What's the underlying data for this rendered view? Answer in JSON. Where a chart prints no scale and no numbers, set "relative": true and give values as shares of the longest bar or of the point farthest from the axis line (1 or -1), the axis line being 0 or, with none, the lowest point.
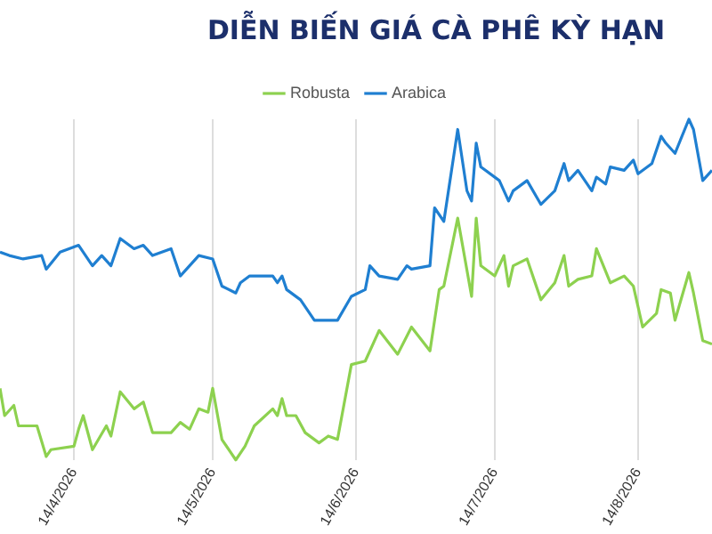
{
  "chart_data": {
    "type": "line",
    "title": "DIỄN BIẾN GIÁ CÀ PHÊ KỲ HẠN",
    "relative": true,
    "grid": "x",
    "legend": "top",
    "marker": "none",
    "line_style": "solid",
    "xlim": [
      "2026-03-29",
      "2026-08-30"
    ],
    "xticks": [
      {
        "value": "2026-04-14",
        "label": "14/4/2026"
      },
      {
        "value": "2026-05-14",
        "label": "14/5/2026"
      },
      {
        "value": "2026-06-14",
        "label": "14/6/2026"
      },
      {
        "value": "2026-07-14",
        "label": "14/7/2026"
      },
      {
        "value": "2026-08-14",
        "label": "14/8/2026"
      }
    ],
    "series": [
      {
        "name": "Robusta",
        "color": "#8dd14f",
        "x": [
          "2026-03-29",
          "2026-03-30",
          "2026-04-01",
          "2026-04-02",
          "2026-04-06",
          "2026-04-08",
          "2026-04-09",
          "2026-04-14",
          "2026-04-15",
          "2026-04-16",
          "2026-04-18",
          "2026-04-21",
          "2026-04-22",
          "2026-04-24",
          "2026-04-27",
          "2026-04-29",
          "2026-05-01",
          "2026-05-05",
          "2026-05-07",
          "2026-05-09",
          "2026-05-11",
          "2026-05-13",
          "2026-05-14",
          "2026-05-16",
          "2026-05-19",
          "2026-05-21",
          "2026-05-23",
          "2026-05-27",
          "2026-05-28",
          "2026-05-29",
          "2026-05-30",
          "2026-06-01",
          "2026-06-03",
          "2026-06-06",
          "2026-06-08",
          "2026-06-10",
          "2026-06-13",
          "2026-06-16",
          "2026-06-19",
          "2026-06-23",
          "2026-06-26",
          "2026-06-30",
          "2026-07-02",
          "2026-07-03",
          "2026-07-06",
          "2026-07-09",
          "2026-07-10",
          "2026-07-11",
          "2026-07-14",
          "2026-07-16",
          "2026-07-17",
          "2026-07-18",
          "2026-07-21",
          "2026-07-24",
          "2026-07-27",
          "2026-07-29",
          "2026-07-30",
          "2026-08-01",
          "2026-08-04",
          "2026-08-05",
          "2026-08-08",
          "2026-08-11",
          "2026-08-13",
          "2026-08-15",
          "2026-08-18",
          "2026-08-19",
          "2026-08-21",
          "2026-08-22",
          "2026-08-25",
          "2026-08-26",
          "2026-08-28",
          "2026-08-30"
        ],
        "values": [
          0.21,
          0.13,
          0.16,
          0.1,
          0.1,
          0.01,
          0.03,
          0.04,
          0.09,
          0.13,
          0.03,
          0.1,
          0.07,
          0.2,
          0.15,
          0.17,
          0.08,
          0.08,
          0.11,
          0.09,
          0.15,
          0.14,
          0.21,
          0.06,
          0,
          0.04,
          0.1,
          0.15,
          0.13,
          0.18,
          0.13,
          0.13,
          0.08,
          0.05,
          0.07,
          0.06,
          0.28,
          0.29,
          0.38,
          0.31,
          0.39,
          0.32,
          0.5,
          0.51,
          0.71,
          0.48,
          0.71,
          0.57,
          0.54,
          0.6,
          0.51,
          0.57,
          0.59,
          0.47,
          0.52,
          0.6,
          0.51,
          0.53,
          0.54,
          0.62,
          0.52,
          0.54,
          0.51,
          0.39,
          0.43,
          0.5,
          0.49,
          0.41,
          0.55,
          0.49,
          0.35,
          0.34
        ]
      },
      {
        "name": "Arabica",
        "color": "#1f7fd1",
        "x": [
          "2026-03-29",
          "2026-03-31",
          "2026-04-03",
          "2026-04-07",
          "2026-04-08",
          "2026-04-11",
          "2026-04-15",
          "2026-04-18",
          "2026-04-20",
          "2026-04-22",
          "2026-04-24",
          "2026-04-27",
          "2026-04-29",
          "2026-05-01",
          "2026-05-05",
          "2026-05-07",
          "2026-05-11",
          "2026-05-14",
          "2026-05-16",
          "2026-05-19",
          "2026-05-20",
          "2026-05-22",
          "2026-05-27",
          "2026-05-28",
          "2026-05-29",
          "2026-05-30",
          "2026-06-02",
          "2026-06-05",
          "2026-06-10",
          "2026-06-13",
          "2026-06-16",
          "2026-06-17",
          "2026-06-19",
          "2026-06-23",
          "2026-06-25",
          "2026-06-26",
          "2026-06-30",
          "2026-07-01",
          "2026-07-03",
          "2026-07-06",
          "2026-07-08",
          "2026-07-09",
          "2026-07-10",
          "2026-07-11",
          "2026-07-15",
          "2026-07-17",
          "2026-07-18",
          "2026-07-21",
          "2026-07-24",
          "2026-07-27",
          "2026-07-29",
          "2026-07-30",
          "2026-08-01",
          "2026-08-04",
          "2026-08-05",
          "2026-08-07",
          "2026-08-08",
          "2026-08-11",
          "2026-08-13",
          "2026-08-14",
          "2026-08-17",
          "2026-08-19",
          "2026-08-20",
          "2026-08-22",
          "2026-08-25",
          "2026-08-26",
          "2026-08-28",
          "2026-08-30"
        ],
        "values": [
          0.61,
          0.6,
          0.59,
          0.6,
          0.56,
          0.61,
          0.63,
          0.57,
          0.6,
          0.57,
          0.65,
          0.62,
          0.63,
          0.6,
          0.62,
          0.54,
          0.6,
          0.59,
          0.51,
          0.49,
          0.52,
          0.54,
          0.54,
          0.52,
          0.54,
          0.5,
          0.47,
          0.41,
          0.41,
          0.48,
          0.5,
          0.57,
          0.54,
          0.53,
          0.57,
          0.56,
          0.57,
          0.74,
          0.7,
          0.97,
          0.79,
          0.76,
          0.93,
          0.86,
          0.82,
          0.76,
          0.79,
          0.82,
          0.75,
          0.79,
          0.87,
          0.82,
          0.85,
          0.79,
          0.83,
          0.81,
          0.86,
          0.85,
          0.88,
          0.84,
          0.87,
          0.95,
          0.93,
          0.9,
          1,
          0.97,
          0.82,
          0.85
        ]
      }
    ]
  }
}
